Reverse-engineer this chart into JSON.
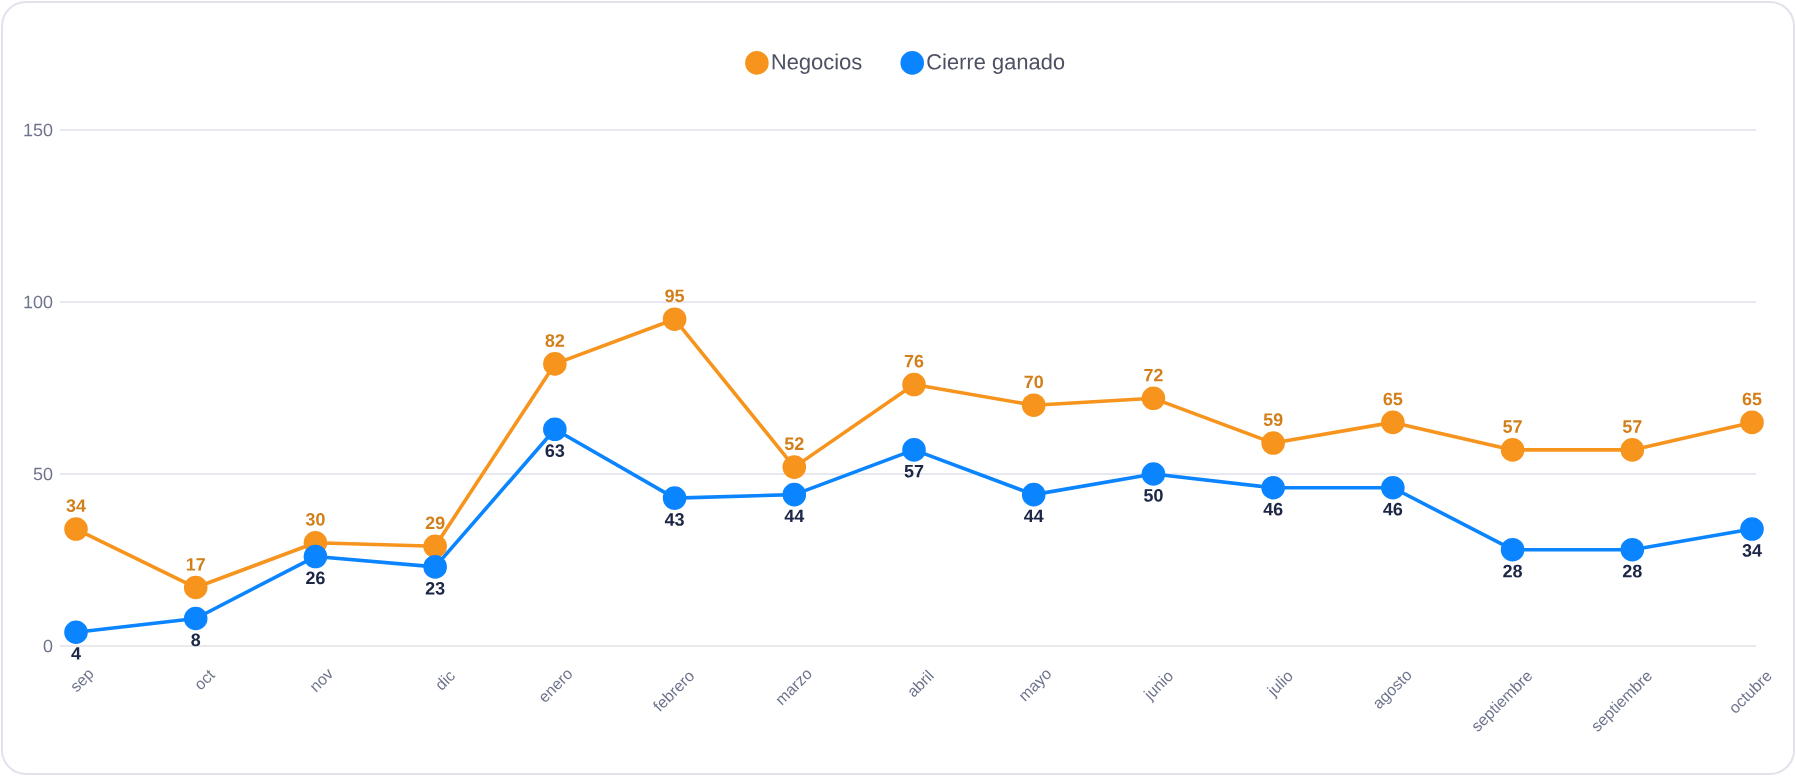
{
  "chart_data": {
    "type": "line",
    "categories": [
      "sep",
      "oct",
      "nov",
      "dic",
      "enero",
      "febrero",
      "marzo",
      "abril",
      "mayo",
      "junio",
      "julio",
      "agosto",
      "septiembre",
      "septiembre",
      "octubre"
    ],
    "series": [
      {
        "name": "Negocios",
        "color": "#f7941d",
        "values": [
          34,
          17,
          30,
          29,
          82,
          95,
          52,
          76,
          70,
          72,
          59,
          65,
          57,
          57,
          65
        ]
      },
      {
        "name": "Cierre ganado",
        "color": "#0b84ff",
        "values": [
          4,
          8,
          26,
          23,
          63,
          43,
          44,
          57,
          44,
          50,
          46,
          46,
          28,
          28,
          34
        ]
      }
    ],
    "ylim": [
      0,
      150
    ],
    "yticks": [
      0,
      50,
      100,
      150
    ],
    "grid": "y",
    "legend": "top",
    "marker": "circle",
    "line_style": "solid",
    "data_labels": true
  }
}
